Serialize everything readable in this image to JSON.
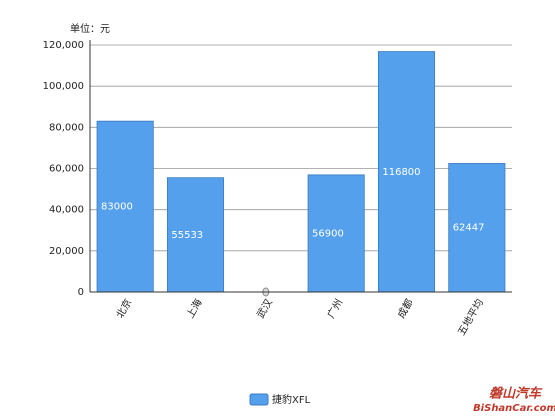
{
  "chart_data": {
    "type": "bar",
    "unit_label": "单位：元",
    "categories": [
      "北京",
      "上海",
      "武汉",
      "广州",
      "成都",
      "五地平均"
    ],
    "series": [
      {
        "name": "捷豹XFL",
        "color": "#55a0ec",
        "values": [
          83000,
          55533,
          0,
          56900,
          116800,
          62447
        ]
      }
    ],
    "ylim": [
      0,
      120000
    ],
    "yticks": [
      0,
      {
        "value": 20000,
        "label": "20,000"
      },
      {
        "value": 40000,
        "label": "40,000"
      },
      {
        "value": 60000,
        "label": "60,000"
      },
      {
        "value": 80000,
        "label": "80,000"
      },
      {
        "value": 100000,
        "label": "100,000"
      },
      {
        "value": 120000,
        "label": "120,000"
      }
    ],
    "grid": true,
    "watermark": [
      "磐山汽车",
      "BiShanCar.com"
    ]
  }
}
